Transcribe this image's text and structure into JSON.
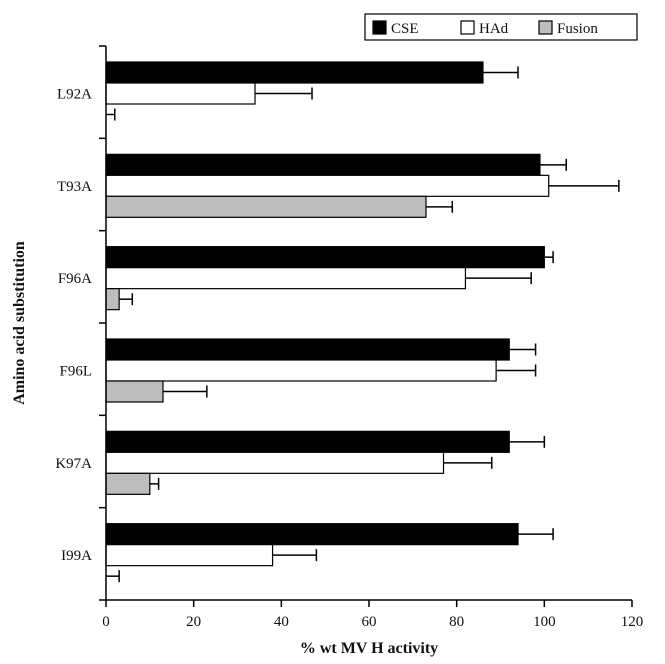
{
  "chart_data": {
    "type": "bar",
    "orientation": "horizontal",
    "title": "",
    "xlabel": "% wt MV H activity",
    "ylabel": "Amino acid substitution",
    "xlim": [
      0,
      120
    ],
    "xticks": [
      0,
      20,
      40,
      60,
      80,
      100,
      120
    ],
    "categories": [
      "L92A",
      "T93A",
      "F96A",
      "F96L",
      "K97A",
      "I99A"
    ],
    "series": [
      {
        "name": "CSE",
        "color": "#000000",
        "values": [
          86,
          99,
          100,
          92,
          92,
          94
        ],
        "errors": [
          8,
          6,
          2,
          6,
          8,
          8
        ]
      },
      {
        "name": "HAd",
        "color": "#ffffff",
        "values": [
          34,
          101,
          82,
          89,
          77,
          38
        ],
        "errors": [
          13,
          16,
          15,
          9,
          11,
          10
        ]
      },
      {
        "name": "Fusion",
        "color": "#bdbdbd",
        "values": [
          0,
          73,
          3,
          13,
          10,
          0
        ],
        "errors": [
          2,
          6,
          3,
          10,
          2,
          3
        ]
      }
    ],
    "legend": {
      "placement": "top-right"
    },
    "grid": false
  }
}
